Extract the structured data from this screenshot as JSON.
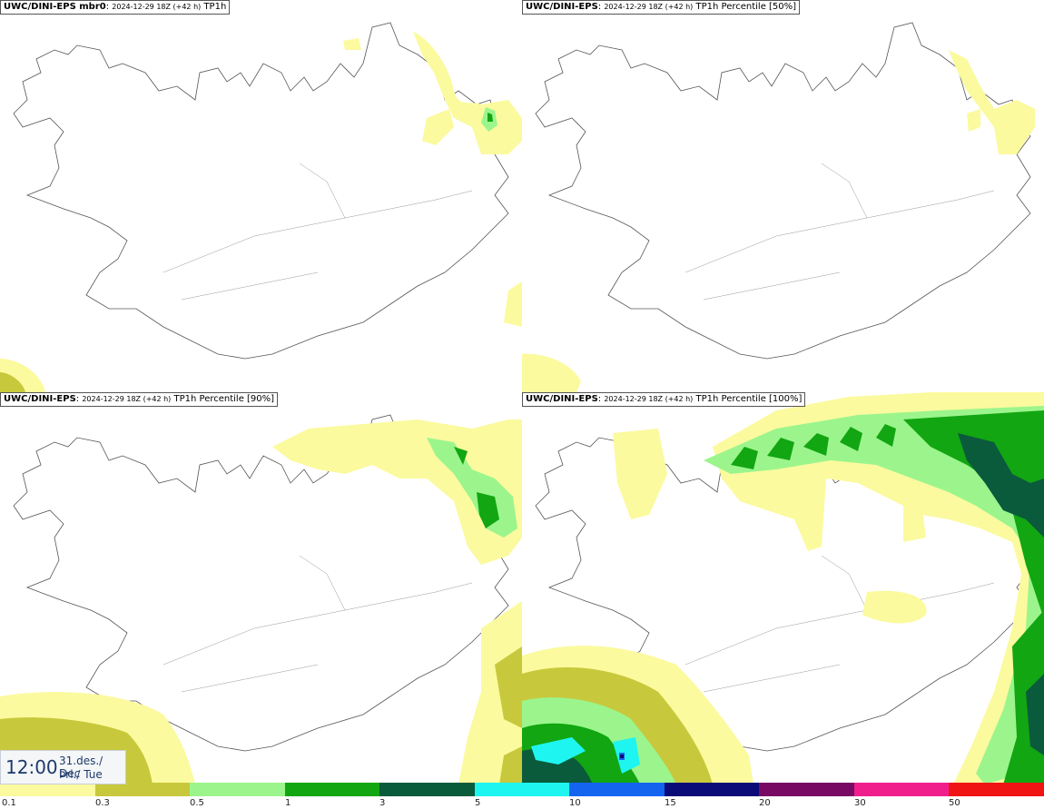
{
  "panels": [
    {
      "model": "UWC/DINI-EPS mbr0",
      "run": "2024-12-29 18Z (+42 h)",
      "field": "TP1h"
    },
    {
      "model": "UWC/DINI-EPS",
      "run": "2024-12-29 18Z (+42 h)",
      "field": "TP1h Percentile [50%]"
    },
    {
      "model": "UWC/DINI-EPS",
      "run": "2024-12-29 18Z (+42 h)",
      "field": "TP1h Percentile [90%]"
    },
    {
      "model": "UWC/DINI-EPS",
      "run": "2024-12-29 18Z (+42 h)",
      "field": "TP1h Percentile [100%]"
    }
  ],
  "valid_time": {
    "time": "12:00",
    "date_line": "31.des./ Dec",
    "day_line": "Þri./ Tue"
  },
  "legend": {
    "labels": [
      "0.1",
      "0.3",
      "0.5",
      "1",
      "3",
      "5",
      "10",
      "15",
      "20",
      "30",
      "50"
    ],
    "colors": [
      "#fbfa9e",
      "#c8c83c",
      "#9bf58c",
      "#12a612",
      "#0a5a3c",
      "#1ef5f0",
      "#1464f0",
      "#0a0a78",
      "#780a64",
      "#f01e8c",
      "#f01414"
    ]
  }
}
